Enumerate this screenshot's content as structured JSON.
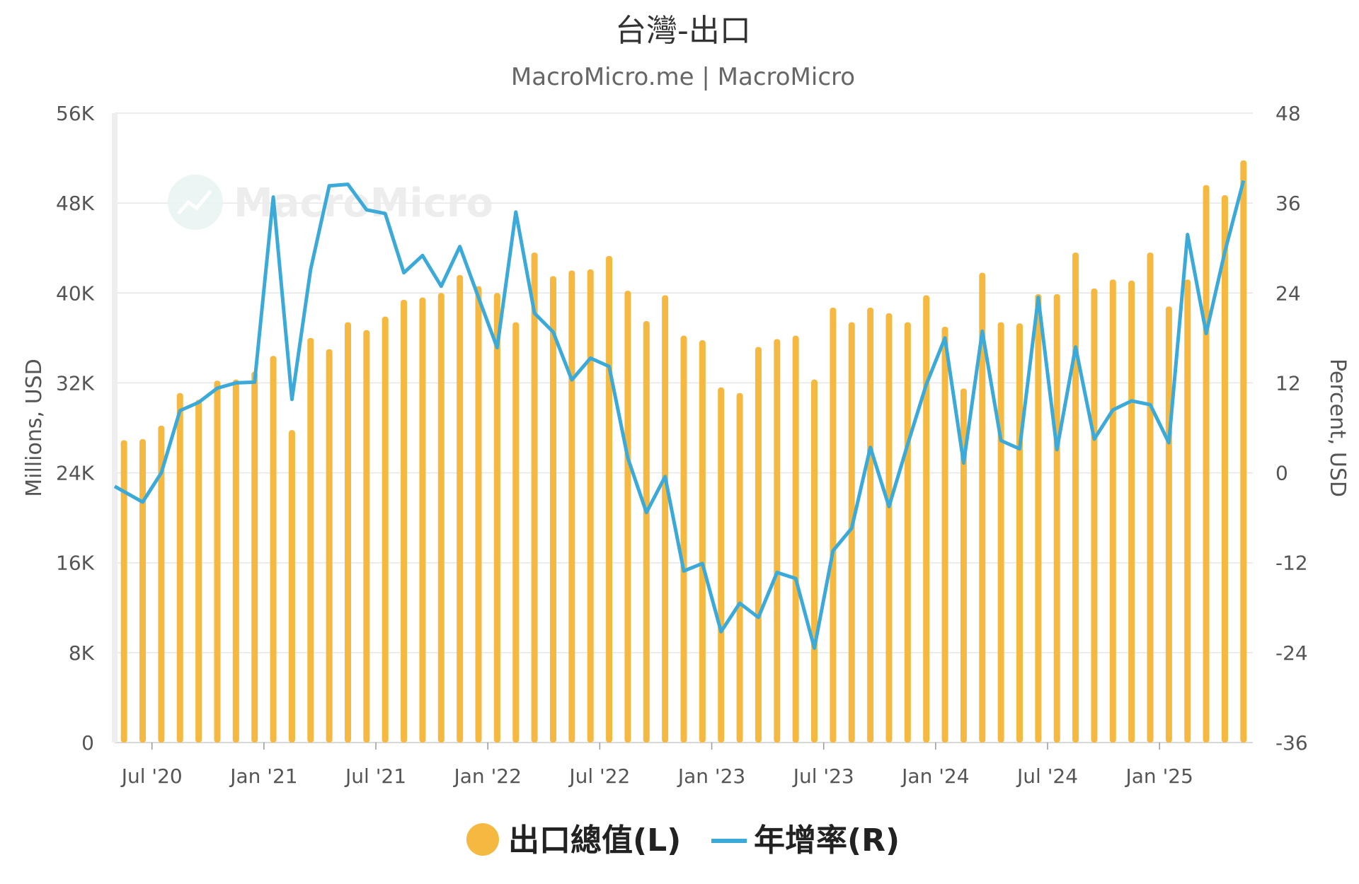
{
  "chart_data": {
    "type": "bar",
    "title": "台灣-出口",
    "subtitle": "MacroMicro.me | MacroMicro",
    "watermark": "MacroMicro",
    "y_left": {
      "label": "Millions, USD",
      "min": 0,
      "max": 56000,
      "ticks": [
        "0",
        "8K",
        "16K",
        "24K",
        "32K",
        "40K",
        "48K",
        "56K"
      ]
    },
    "y_right": {
      "label": "Percent, USD",
      "min": -36,
      "max": 48,
      "ticks": [
        "-36",
        "-24",
        "-12",
        "0",
        "12",
        "24",
        "36",
        "48"
      ]
    },
    "x_axis": {
      "ticks": [
        {
          "label": "Jul '20",
          "x": "2020-07"
        },
        {
          "label": "Jan '21",
          "x": "2021-01"
        },
        {
          "label": "Jul '21",
          "x": "2021-07"
        },
        {
          "label": "Jan '22",
          "x": "2022-01"
        },
        {
          "label": "Jul '22",
          "x": "2022-07"
        },
        {
          "label": "Jan '23",
          "x": "2023-01"
        },
        {
          "label": "Jul '23",
          "x": "2023-07"
        },
        {
          "label": "Jan '24",
          "x": "2024-01"
        },
        {
          "label": "Jul '24",
          "x": "2024-07"
        },
        {
          "label": "Jan '25",
          "x": "2025-01"
        }
      ]
    },
    "grid": true,
    "legend_position": "bottom",
    "x": [
      "2020-05",
      "2020-06",
      "2020-07",
      "2020-08",
      "2020-09",
      "2020-10",
      "2020-11",
      "2020-12",
      "2021-01",
      "2021-02",
      "2021-03",
      "2021-04",
      "2021-05",
      "2021-06",
      "2021-07",
      "2021-08",
      "2021-09",
      "2021-10",
      "2021-11",
      "2021-12",
      "2022-01",
      "2022-02",
      "2022-03",
      "2022-04",
      "2022-05",
      "2022-06",
      "2022-07",
      "2022-08",
      "2022-09",
      "2022-10",
      "2022-11",
      "2022-12",
      "2023-01",
      "2023-02",
      "2023-03",
      "2023-04",
      "2023-05",
      "2023-06",
      "2023-07",
      "2023-08",
      "2023-09",
      "2023-10",
      "2023-11",
      "2023-12",
      "2024-01",
      "2024-02",
      "2024-03",
      "2024-04",
      "2024-05",
      "2024-06",
      "2024-07",
      "2024-08",
      "2024-09",
      "2024-10",
      "2024-11",
      "2024-12",
      "2025-01",
      "2025-02",
      "2025-03",
      "2025-04",
      "2025-05"
    ],
    "series": [
      {
        "name": "出口總值(L)",
        "type": "bar",
        "axis": "left",
        "color": "#F5B942",
        "values": [
          26900,
          27000,
          28200,
          31100,
          30500,
          32200,
          32300,
          33000,
          34400,
          27800,
          36000,
          35000,
          37400,
          36700,
          37900,
          39400,
          39600,
          40000,
          41600,
          40600,
          40000,
          37400,
          43600,
          41500,
          42000,
          42100,
          43300,
          40200,
          37500,
          39800,
          36200,
          35800,
          31600,
          31100,
          35200,
          35900,
          36200,
          32300,
          38700,
          37400,
          38700,
          38200,
          37400,
          39800,
          37000,
          31500,
          41800,
          37400,
          37300,
          39900,
          39900,
          43600,
          40400,
          41200,
          41100,
          43600,
          38800,
          41200,
          49600,
          48700,
          51800
        ]
      },
      {
        "name": "年增率(R)",
        "type": "line",
        "axis": "right",
        "color": "#3BAAD8",
        "values": [
          -1.8,
          -3.9,
          0,
          8.3,
          9.4,
          11.3,
          12,
          12.1,
          36.8,
          9.8,
          27.1,
          38.3,
          38.5,
          35.1,
          34.6,
          26.7,
          29,
          24.9,
          30.2,
          23.4,
          16.7,
          34.8,
          21.3,
          18.8,
          12.4,
          15.3,
          14.2,
          2.0,
          -5.3,
          -0.5,
          -13.1,
          -12.1,
          -21.2,
          -17.4,
          -19.3,
          -13.3,
          -14.1,
          -23.4,
          -10.4,
          -7.4,
          3.4,
          -4.5,
          3.8,
          11.8,
          18,
          1.3,
          18.9,
          4.3,
          3.2,
          23.4,
          3.1,
          16.8,
          4.5,
          8.4,
          9.6,
          9.1,
          4,
          31.8,
          18.6,
          29.5,
          39
        ]
      }
    ]
  },
  "legend": [
    {
      "label": "出口總值(L)",
      "symbol": "circle",
      "color": "#F5B942"
    },
    {
      "label": "年增率(R)",
      "symbol": "line",
      "color": "#3BAAD8"
    }
  ]
}
